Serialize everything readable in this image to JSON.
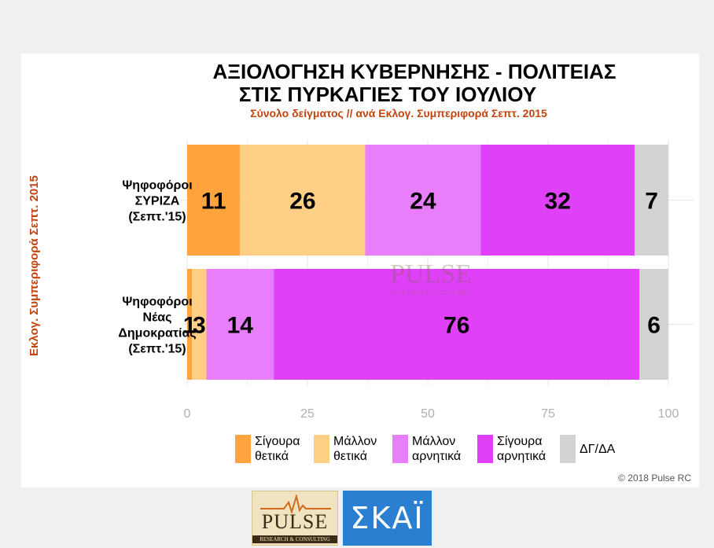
{
  "chart_data": {
    "type": "bar",
    "orientation": "horizontal",
    "stacked": true,
    "title": [
      "ΑΞΙΟΛΟΓΗΣΗ ΚΥΒΕΡΝΗΣΗΣ - ΠΟΛΙΤΕΙΑΣ",
      "ΣΤΙΣ ΠΥΡΚΑΓΙΕΣ ΤΟΥ ΙΟΥΛΙΟΥ"
    ],
    "subtitle": "Σύνολο δείγματος // ανά Εκλογ. Συμπεριφορά Σεπτ. 2015",
    "ylabel": "Εκλογ. Συμπεριφορά Σεπτ. 2015",
    "xlabel": "",
    "xlim": [
      0,
      100
    ],
    "xticks": [
      0,
      25,
      50,
      75,
      100
    ],
    "grid": true,
    "legend_position": "bottom",
    "categories": [
      [
        "Ψηφοφόροι",
        "ΣΥΡΙΖΑ",
        "(Σεπτ.'15)"
      ],
      [
        "Ψηφοφόροι",
        "Νέας",
        "Δημοκρατίας",
        "(Σεπτ.'15)"
      ]
    ],
    "series": [
      {
        "name": [
          "Σίγουρα",
          "θετικά"
        ],
        "color": "#ffa43d",
        "values": [
          11,
          1
        ]
      },
      {
        "name": [
          "Μάλλον",
          "θετικά"
        ],
        "color": "#ffcf85",
        "values": [
          26,
          3
        ]
      },
      {
        "name": [
          "Μάλλον",
          "αρνητικά"
        ],
        "color": "#e87ef9",
        "values": [
          24,
          14
        ]
      },
      {
        "name": [
          "Σίγουρα",
          "αρνητικά"
        ],
        "color": "#e040f8",
        "values": [
          32,
          76
        ]
      },
      {
        "name": [
          "ΔΓ/ΔΑ"
        ],
        "color": "#d3d3d3",
        "values": [
          7,
          6
        ]
      }
    ],
    "copyright": "© 2018 Pulse RC"
  },
  "logos": {
    "pulse_word": "PULSE",
    "pulse_sub": "RESEARCH & CONSULTING",
    "skai_word": "ΣΚΑΪ"
  }
}
